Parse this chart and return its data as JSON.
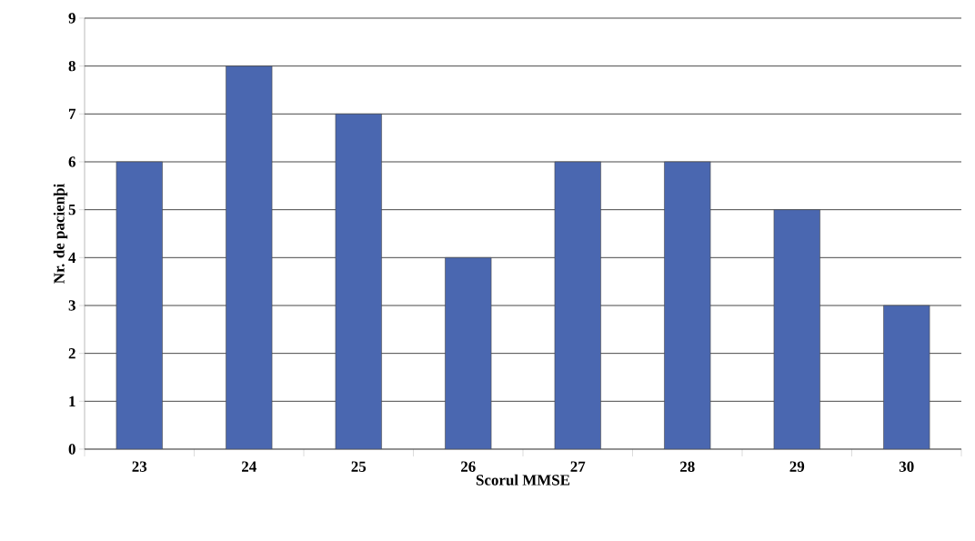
{
  "chart_data": {
    "type": "bar",
    "xlabel": "Scorul MMSE",
    "ylabel": "Nr. de pacienþi",
    "categories": [
      "23",
      "24",
      "25",
      "26",
      "27",
      "28",
      "29",
      "30"
    ],
    "values": [
      6,
      8,
      7,
      4,
      6,
      6,
      5,
      3
    ],
    "color": "#4a67b0",
    "ylim": [
      0,
      9
    ],
    "yticks": [
      0,
      1,
      2,
      3,
      4,
      5,
      6,
      7,
      8,
      9
    ],
    "grid": "y"
  }
}
